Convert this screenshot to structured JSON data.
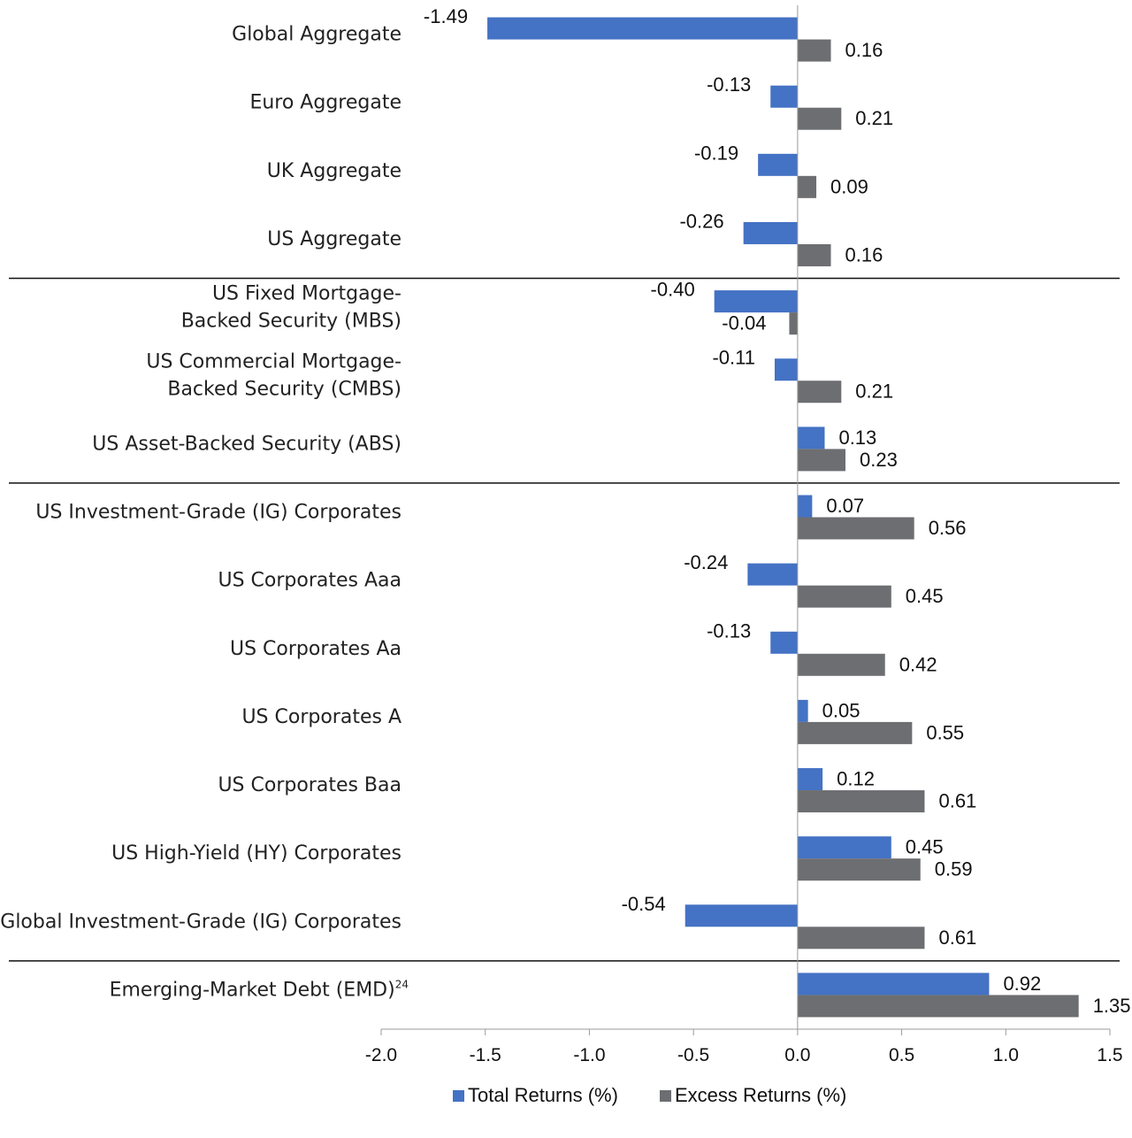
{
  "chart_data": {
    "type": "bar",
    "orientation": "horizontal",
    "categories": [
      {
        "lines": [
          "Global Aggregate"
        ]
      },
      {
        "lines": [
          "Euro Aggregate"
        ]
      },
      {
        "lines": [
          "UK Aggregate"
        ]
      },
      {
        "lines": [
          "US Aggregate"
        ]
      },
      {
        "lines": [
          "US Fixed Mortgage-",
          "Backed Security (MBS)"
        ]
      },
      {
        "lines": [
          "US Commercial Mortgage-",
          "Backed Security (CMBS)"
        ]
      },
      {
        "lines": [
          "US Asset-Backed Security (ABS)"
        ]
      },
      {
        "lines": [
          "US Investment-Grade (IG) Corporates"
        ]
      },
      {
        "lines": [
          "US Corporates Aaa"
        ]
      },
      {
        "lines": [
          "US Corporates Aa"
        ]
      },
      {
        "lines": [
          "US Corporates A"
        ]
      },
      {
        "lines": [
          "US Corporates Baa"
        ]
      },
      {
        "lines": [
          "US High-Yield (HY) Corporates"
        ]
      },
      {
        "lines": [
          "Global Investment-Grade (IG) Corporates"
        ]
      },
      {
        "lines": [
          "Emerging-Market Debt (EMD)"
        ],
        "superscript": "24"
      }
    ],
    "group_separators_after_index": [
      3,
      6,
      13
    ],
    "series": [
      {
        "name": "Total Returns (%)",
        "color": "#4472C4",
        "values": [
          -1.49,
          -0.13,
          -0.19,
          -0.26,
          -0.4,
          -0.11,
          0.13,
          0.07,
          -0.24,
          -0.13,
          0.05,
          0.12,
          0.45,
          -0.54,
          0.92
        ],
        "labels": [
          "-1.49",
          "-0.13",
          "-0.19",
          "-0.26",
          "-0.40",
          "-0.11",
          "0.13",
          "0.07",
          "-0.24",
          "-0.13",
          "0.05",
          "0.12",
          "0.45",
          "-0.54",
          "0.92"
        ]
      },
      {
        "name": "Excess Returns (%)",
        "color": "#6D6E71",
        "values": [
          0.16,
          0.21,
          0.09,
          0.16,
          -0.04,
          0.21,
          0.23,
          0.56,
          0.45,
          0.42,
          0.55,
          0.61,
          0.59,
          0.61,
          1.35
        ],
        "labels": [
          "0.16",
          "0.21",
          "0.09",
          "0.16",
          "-0.04",
          "0.21",
          "0.23",
          "0.56",
          "0.45",
          "0.42",
          "0.55",
          "0.61",
          "0.59",
          "0.61",
          "1.35"
        ]
      }
    ],
    "xlim": [
      -2.0,
      1.5
    ],
    "xticks": [
      -2.0,
      -1.5,
      -1.0,
      -0.5,
      0.0,
      0.5,
      1.0,
      1.5
    ],
    "xtick_labels": [
      "-2.0",
      "-1.5",
      "-1.0",
      "-0.5",
      "0.0",
      "0.5",
      "1.0",
      "1.5"
    ],
    "grid": false,
    "legend_position": "bottom-center",
    "title": "",
    "xlabel": "",
    "ylabel": ""
  }
}
